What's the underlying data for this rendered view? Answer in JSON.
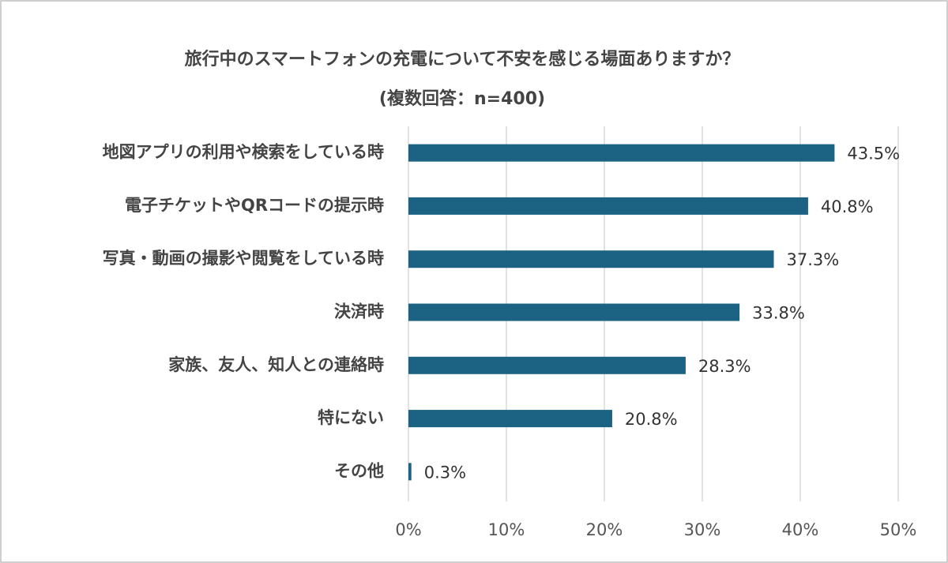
{
  "chart_data": {
    "type": "bar",
    "orientation": "horizontal",
    "title": "旅行中のスマートフォンの充電について不安を感じる場面ありますか？",
    "subtitle": "(複数回答：n=400)",
    "categories": [
      "地図アプリの利用や検索をしている時",
      "電子チケットやQRコードの提示時",
      "写真・動画の撮影や閲覧をしている時",
      "決済時",
      "家族、友人、知人との連絡時",
      "特にない",
      "その他"
    ],
    "values": [
      43.5,
      40.8,
      37.3,
      33.8,
      28.3,
      20.8,
      0.3
    ],
    "value_labels": [
      "43.5%",
      "40.8%",
      "37.3%",
      "33.8%",
      "28.3%",
      "20.8%",
      "0.3%"
    ],
    "color": "#1b6283",
    "xlim": [
      0,
      50
    ],
    "xticks": [
      {
        "value": 0,
        "label": "0%"
      },
      {
        "value": 10,
        "label": "10%"
      },
      {
        "value": 20,
        "label": "20%"
      },
      {
        "value": 30,
        "label": "30%"
      },
      {
        "value": 40,
        "label": "40%"
      },
      {
        "value": 50,
        "label": "50%"
      }
    ],
    "grid": true
  }
}
